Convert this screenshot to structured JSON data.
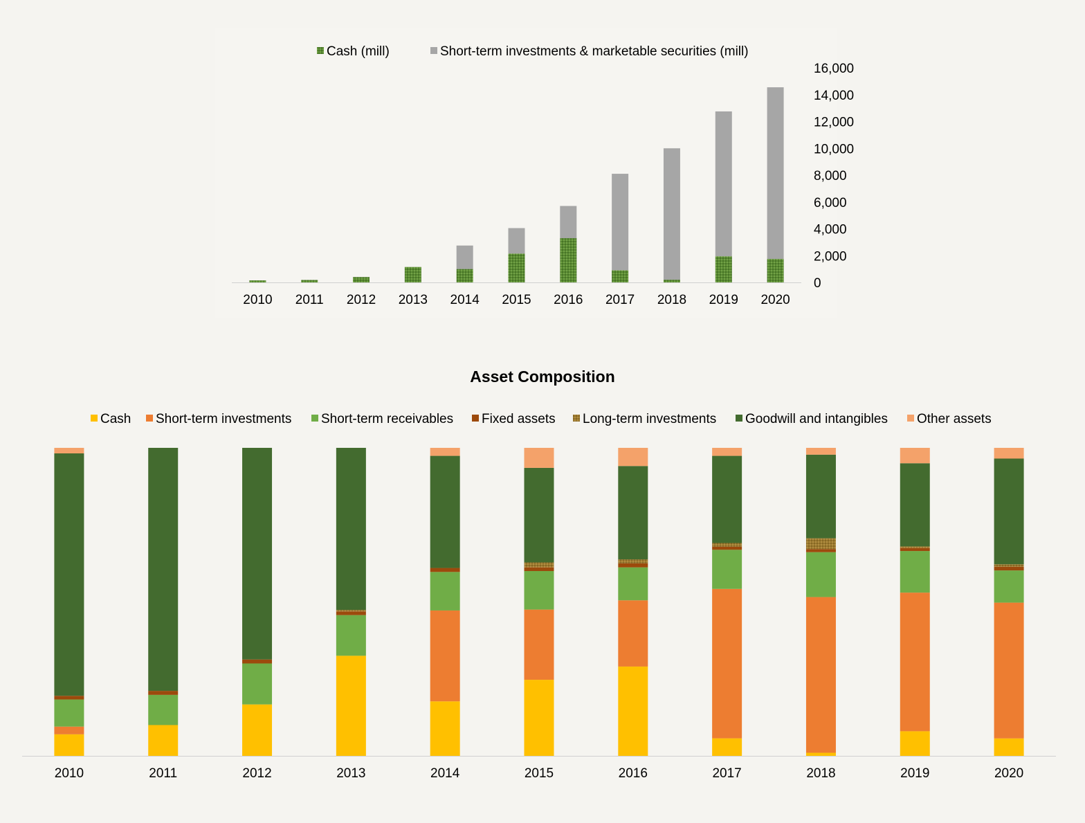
{
  "colors": {
    "background": "#f5f4f0",
    "plot_bg": "#f6f5f1",
    "axis": "#d0d0d0"
  },
  "chart_data": [
    {
      "type": "bar",
      "stacked": true,
      "title": "",
      "xlabel": "",
      "ylabel": "",
      "y_axis_side": "right",
      "ylim": [
        0,
        16000
      ],
      "yticks": [
        "0",
        "2,000",
        "4,000",
        "6,000",
        "8,000",
        "10,000",
        "12,000",
        "14,000",
        "16,000"
      ],
      "legend_position": "top",
      "categories": [
        "2010",
        "2011",
        "2012",
        "2013",
        "2014",
        "2015",
        "2016",
        "2017",
        "2018",
        "2019",
        "2020"
      ],
      "series": [
        {
          "name": "Cash (mill)",
          "color": "#5a8a33",
          "pattern": "dotted-green",
          "values": [
            150,
            180,
            400,
            1150,
            1000,
            2150,
            3300,
            900,
            200,
            1950,
            1750
          ]
        },
        {
          "name": "Short-term investments & marketable securities (mill)",
          "color": "#a6a6a6",
          "values": [
            0,
            0,
            0,
            0,
            1750,
            1900,
            2400,
            7200,
            9800,
            10800,
            12800
          ]
        }
      ]
    },
    {
      "type": "bar",
      "stacked": true,
      "percent": true,
      "title": "Asset Composition",
      "xlabel": "",
      "ylabel": "",
      "ylim": [
        0,
        1
      ],
      "legend_position": "top",
      "categories": [
        "2010",
        "2011",
        "2012",
        "2013",
        "2014",
        "2015",
        "2016",
        "2017",
        "2018",
        "2019",
        "2020"
      ],
      "series": [
        {
          "name": "Cash",
          "color": "#ffc000",
          "values": [
            0.07,
            0.1,
            0.167,
            0.325,
            0.177,
            0.247,
            0.29,
            0.057,
            0.01,
            0.08,
            0.057
          ]
        },
        {
          "name": "Short-term investments",
          "color": "#ed7d31",
          "values": [
            0.025,
            0,
            0,
            0,
            0.295,
            0.228,
            0.215,
            0.485,
            0.503,
            0.45,
            0.443
          ]
        },
        {
          "name": "Short-term receivables",
          "color": "#70ad47",
          "values": [
            0.088,
            0.098,
            0.133,
            0.132,
            0.125,
            0.125,
            0.107,
            0.127,
            0.145,
            0.135,
            0.105
          ]
        },
        {
          "name": "Fixed assets",
          "color": "#9c4a0c",
          "values": [
            0.012,
            0.013,
            0.013,
            0.012,
            0.013,
            0.012,
            0.013,
            0.01,
            0.01,
            0.01,
            0.012
          ]
        },
        {
          "name": "Long-term investments",
          "color": "#9c7a2f",
          "values": [
            0,
            0,
            0,
            0.005,
            0,
            0.016,
            0.013,
            0.012,
            0.035,
            0.005,
            0.008
          ]
        },
        {
          "name": "Goodwill and intangibles",
          "color": "#436b2f",
          "values": [
            0.787,
            0.789,
            0.687,
            0.526,
            0.364,
            0.307,
            0.303,
            0.283,
            0.27,
            0.27,
            0.345
          ]
        },
        {
          "name": "Other assets",
          "color": "#f4a26a",
          "values": [
            0.018,
            0,
            0,
            0,
            0.026,
            0.065,
            0.059,
            0.026,
            0.022,
            0.05,
            0.035
          ]
        }
      ]
    }
  ]
}
